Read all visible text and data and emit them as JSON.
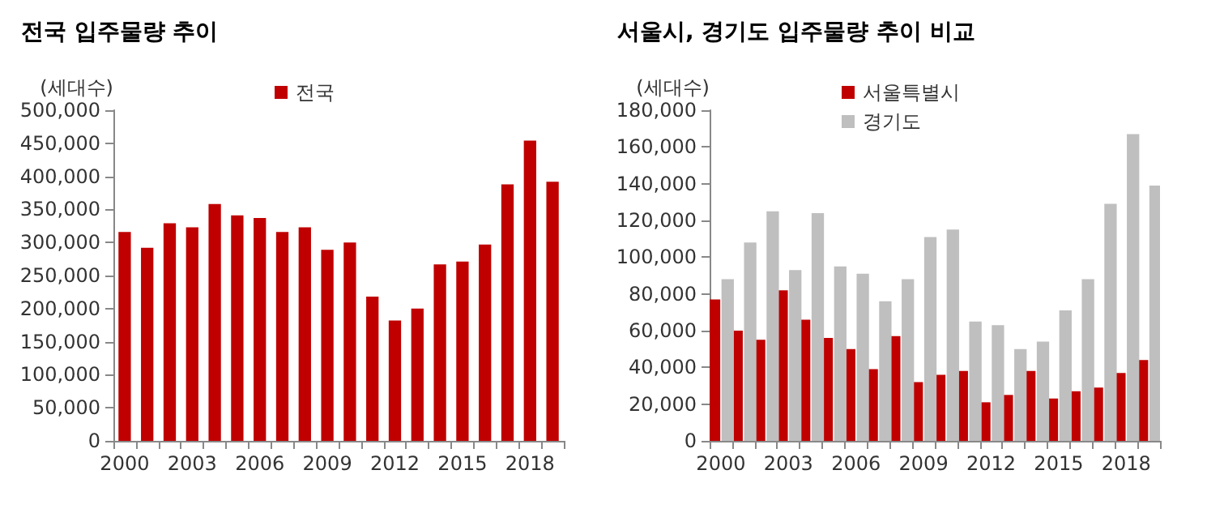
{
  "chart_data": [
    {
      "type": "bar",
      "title": "전국 입주물량 추이",
      "ylabel": "(세대수)",
      "categories": [
        "2000",
        null,
        null,
        "2003",
        null,
        null,
        "2006",
        null,
        null,
        "2009",
        null,
        null,
        "2012",
        null,
        null,
        "2015",
        null,
        null,
        "2018",
        null
      ],
      "series": [
        {
          "name": "전국",
          "color": "#c00000",
          "values": [
            316000,
            292000,
            329000,
            323000,
            358000,
            341000,
            337000,
            316000,
            323000,
            289000,
            300000,
            218000,
            182000,
            200000,
            267000,
            271000,
            297000,
            388000,
            454000,
            392000
          ]
        }
      ],
      "ylim": [
        0,
        500000
      ],
      "yticks": [
        0,
        {
          "value": 50000,
          "label": "50,000"
        },
        {
          "value": 100000,
          "label": "100,000"
        },
        {
          "value": 150000,
          "label": "150,000"
        },
        {
          "value": 200000,
          "label": "200,000"
        },
        {
          "value": 250000,
          "label": "250,000"
        },
        {
          "value": 300000,
          "label": "300,000"
        },
        {
          "value": 350000,
          "label": "350,000"
        },
        {
          "value": 400000,
          "label": "400,000"
        },
        {
          "value": 450000,
          "label": "450,000"
        },
        {
          "value": 500000,
          "label": "500,000"
        }
      ],
      "grid": false,
      "legend": "top"
    },
    {
      "type": "bar",
      "title": "서울시, 경기도 입주물량 추이 비교",
      "ylabel": "(세대수)",
      "categories": [
        "2000",
        null,
        null,
        "2003",
        null,
        null,
        "2006",
        null,
        null,
        "2009",
        null,
        null,
        "2012",
        null,
        null,
        "2015",
        null,
        null,
        "2018",
        null
      ],
      "series": [
        {
          "name": "서울특별시",
          "color": "#c00000",
          "values": [
            77000,
            60000,
            55000,
            82000,
            66000,
            56000,
            50000,
            39000,
            57000,
            32000,
            36000,
            38000,
            21000,
            25000,
            38000,
            23000,
            27000,
            29000,
            37000,
            44000
          ]
        },
        {
          "name": "경기도",
          "color": "#bfbfbf",
          "values": [
            88000,
            108000,
            125000,
            93000,
            124000,
            95000,
            91000,
            76000,
            88000,
            111000,
            115000,
            65000,
            63000,
            50000,
            54000,
            71000,
            88000,
            129000,
            167000,
            139000
          ]
        }
      ],
      "ylim": [
        0,
        180000
      ],
      "yticks": [
        0,
        {
          "value": 20000,
          "label": "20,000"
        },
        {
          "value": 40000,
          "label": "40,000"
        },
        {
          "value": 60000,
          "label": "60,000"
        },
        {
          "value": 80000,
          "label": "80,000"
        },
        {
          "value": 100000,
          "label": "100,000"
        },
        {
          "value": 120000,
          "label": "120,000"
        },
        {
          "value": 140000,
          "label": "140,000"
        },
        {
          "value": 160000,
          "label": "160,000"
        },
        {
          "value": 180000,
          "label": "180,000"
        }
      ],
      "grid": false,
      "legend": "top"
    }
  ]
}
